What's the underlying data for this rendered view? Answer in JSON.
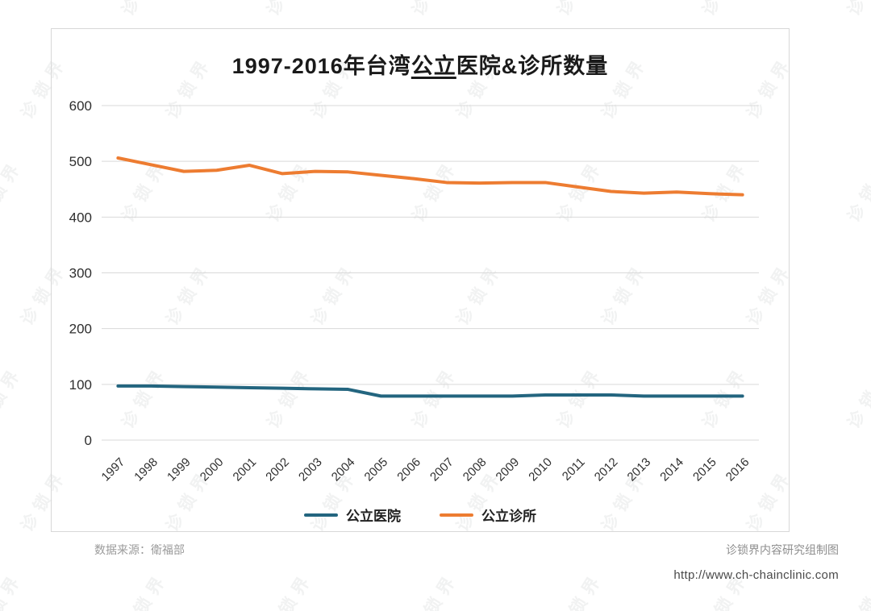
{
  "watermark": {
    "text": "诊锁界"
  },
  "chart_data": {
    "type": "line",
    "title": "1997-2016年台湾公立医院&诊所数量",
    "title_parts": {
      "prefix": "1997-2016年台湾",
      "underlined": "公立",
      "suffix": "医院&诊所数量"
    },
    "x": [
      "1997",
      "1998",
      "1999",
      "2000",
      "2001",
      "2002",
      "2003",
      "2004",
      "2005",
      "2006",
      "2007",
      "2008",
      "2009",
      "2010",
      "2011",
      "2012",
      "2013",
      "2014",
      "2015",
      "2016"
    ],
    "ylim": [
      0,
      600
    ],
    "yticks": [
      0,
      100,
      200,
      300,
      400,
      500,
      600
    ],
    "grid": true,
    "legend_position": "bottom",
    "series": [
      {
        "name": "公立医院",
        "color": "#23657f",
        "values": [
          97,
          97,
          96,
          95,
          94,
          93,
          92,
          91,
          79,
          79,
          79,
          79,
          79,
          81,
          81,
          81,
          79,
          79,
          79,
          79
        ]
      },
      {
        "name": "公立诊所",
        "color": "#ed7c31",
        "values": [
          506,
          494,
          482,
          484,
          493,
          478,
          482,
          481,
          475,
          469,
          462,
          461,
          462,
          462,
          454,
          446,
          443,
          445,
          442,
          440
        ]
      }
    ]
  },
  "footer": {
    "source": "数据来源：衛福部",
    "credit": "诊锁界内容研究组制图",
    "url": "http://www.ch-chainclinic.com"
  }
}
